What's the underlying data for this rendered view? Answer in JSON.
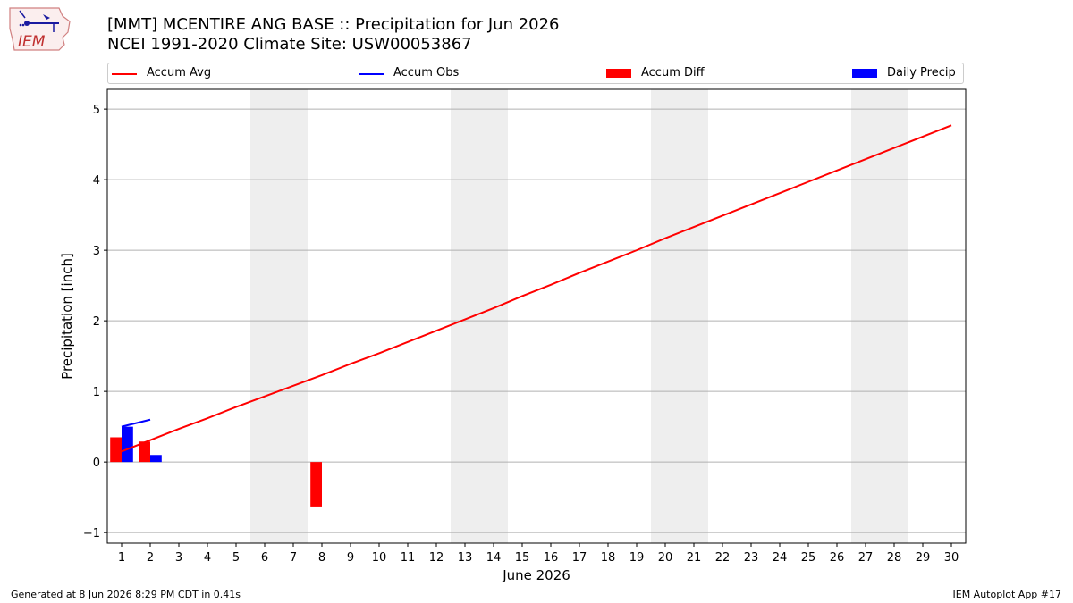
{
  "header": {
    "title_line1": "[MMT] MCENTIRE ANG BASE :: Precipitation for Jun 2026",
    "title_line2": "NCEI 1991-2020 Climate Site: USW00053867"
  },
  "logo": {
    "text": "IEM",
    "icon": "iem-iowa-logo-icon"
  },
  "legend": {
    "items": [
      {
        "label": "Accum Avg",
        "kind": "line",
        "color": "#ff0000"
      },
      {
        "label": "Accum Obs",
        "kind": "line",
        "color": "#0000ff"
      },
      {
        "label": "Accum Diff",
        "kind": "patch",
        "color": "#ff0000"
      },
      {
        "label": "Daily Precip",
        "kind": "patch",
        "color": "#0000ff"
      }
    ]
  },
  "footer": {
    "left": "Generated at 8 Jun 2026 8:29 PM CDT in 0.41s",
    "right": "IEM Autoplot App #17"
  },
  "chart_data": {
    "type": "bar",
    "xlabel": "June 2026",
    "ylabel": "Precipitation [inch]",
    "xlim": [
      0.5,
      30.5
    ],
    "ylim": [
      -1.15,
      5.28
    ],
    "x_ticks": [
      1,
      2,
      3,
      4,
      5,
      6,
      7,
      8,
      9,
      10,
      11,
      12,
      13,
      14,
      15,
      16,
      17,
      18,
      19,
      20,
      21,
      22,
      23,
      24,
      25,
      26,
      27,
      28,
      29,
      30
    ],
    "y_ticks": [
      -1,
      0,
      1,
      2,
      3,
      4,
      5
    ],
    "grid": "horizontal",
    "weekend_shading": [
      [
        5.5,
        7.5
      ],
      [
        12.5,
        14.5
      ],
      [
        19.5,
        21.5
      ],
      [
        26.5,
        28.5
      ]
    ],
    "series": [
      {
        "name": "Accum Avg",
        "kind": "line",
        "color": "#ff0000",
        "x": [
          1,
          2,
          3,
          4,
          5,
          6,
          7,
          8,
          9,
          10,
          11,
          12,
          13,
          14,
          15,
          16,
          17,
          18,
          19,
          20,
          21,
          22,
          23,
          24,
          25,
          26,
          27,
          28,
          29,
          30
        ],
        "values": [
          0.15,
          0.31,
          0.47,
          0.62,
          0.78,
          0.93,
          1.08,
          1.23,
          1.39,
          1.54,
          1.7,
          1.86,
          2.02,
          2.18,
          2.35,
          2.51,
          2.68,
          2.84,
          3.0,
          3.17,
          3.33,
          3.49,
          3.65,
          3.81,
          3.97,
          4.13,
          4.29,
          4.45,
          4.61,
          4.77
        ]
      },
      {
        "name": "Accum Obs",
        "kind": "line",
        "color": "#0000ff",
        "x": [
          1,
          2
        ],
        "values": [
          0.5,
          0.6
        ]
      },
      {
        "name": "Accum Diff",
        "kind": "bar",
        "color": "#ff0000",
        "x": [
          1,
          2,
          8
        ],
        "values": [
          0.35,
          0.29,
          -0.63
        ]
      },
      {
        "name": "Daily Precip",
        "kind": "bar",
        "color": "#0000ff",
        "x": [
          1,
          2
        ],
        "values": [
          0.5,
          0.1
        ]
      }
    ]
  }
}
